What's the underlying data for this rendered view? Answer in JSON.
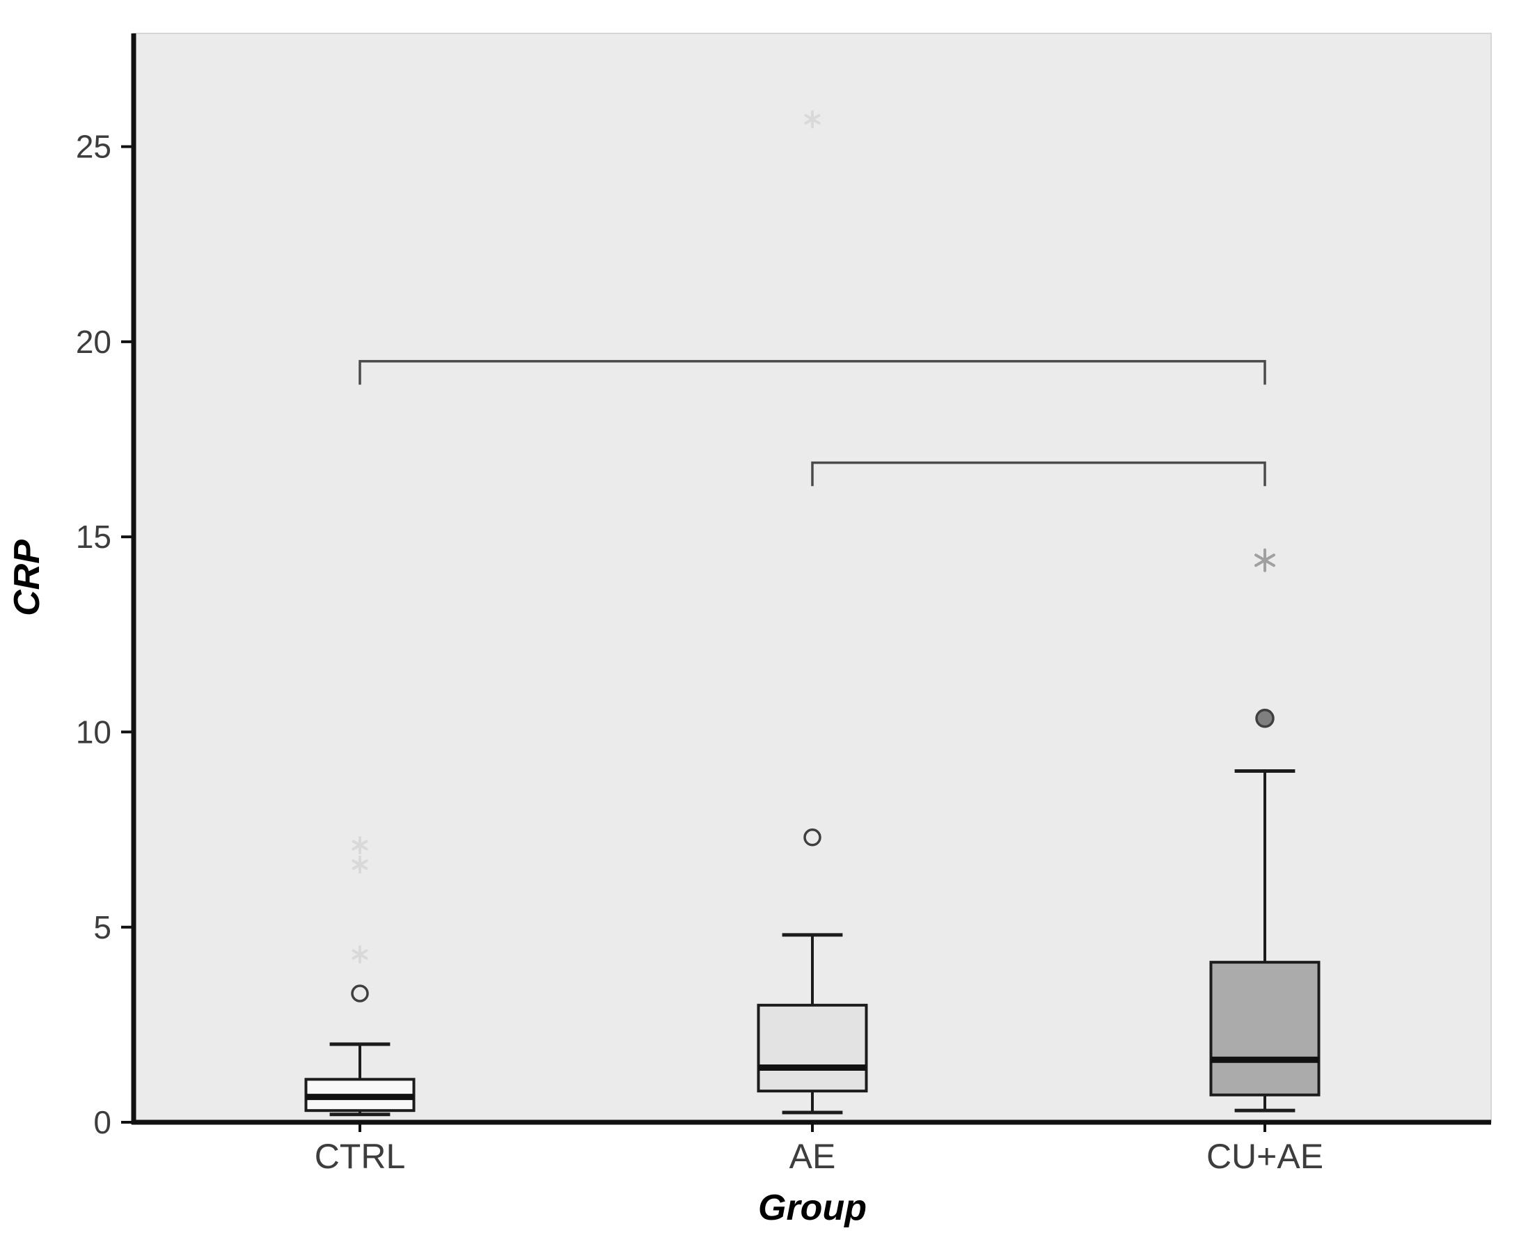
{
  "figure": {
    "background": "#ffffff",
    "plot_background": "#ebebeb",
    "plot_border": "#d6d6d6"
  },
  "chart_data": {
    "type": "boxplot",
    "title": "",
    "xlabel": "Group",
    "ylabel": "CRP",
    "ylim": [
      0,
      27.9
    ],
    "yticks": [
      0,
      5,
      10,
      15,
      20,
      25
    ],
    "categories": [
      "CTRL",
      "AE",
      "CU+AE"
    ],
    "grid": false,
    "legend": false,
    "boxes": [
      {
        "group": "CTRL",
        "whisker_low": 0.2,
        "q1": 0.3,
        "median": 0.65,
        "q3": 1.1,
        "whisker_high": 2.0,
        "fill": "#f8f8f8",
        "outliers": [
          {
            "value": 3.3,
            "type": "circle"
          },
          {
            "value": 4.3,
            "type": "star-faint"
          },
          {
            "value": 6.6,
            "type": "star-faint"
          },
          {
            "value": 7.1,
            "type": "star-faint"
          }
        ]
      },
      {
        "group": "AE",
        "whisker_low": 0.25,
        "q1": 0.8,
        "median": 1.4,
        "q3": 3.0,
        "whisker_high": 4.8,
        "fill": "#e3e3e3",
        "outliers": [
          {
            "value": 7.3,
            "type": "circle"
          },
          {
            "value": 25.7,
            "type": "star-faint"
          }
        ]
      },
      {
        "group": "CU+AE",
        "whisker_low": 0.3,
        "q1": 0.7,
        "median": 1.6,
        "q3": 4.1,
        "whisker_high": 9.0,
        "fill": "#ababab",
        "outliers": [
          {
            "value": 10.35,
            "type": "circle-filled"
          },
          {
            "value": 14.4,
            "type": "star"
          }
        ]
      }
    ],
    "brackets": [
      {
        "from": "CTRL",
        "to": "CU+AE",
        "y": 19.5,
        "drop": 0.6
      },
      {
        "from": "AE",
        "to": "CU+AE",
        "y": 16.9,
        "drop": 0.6
      }
    ],
    "colors": {
      "axis": "#111111",
      "box_stroke": "#1c1c1c",
      "median": "#111111",
      "bracket": "#4a4a4a",
      "outlier_stroke": "#3f3f3f",
      "outlier_fill": "#7f7f7f",
      "star": "#a0a0a0",
      "faint": "#d9d9d9",
      "tick_text": "#3d3d3d"
    }
  }
}
